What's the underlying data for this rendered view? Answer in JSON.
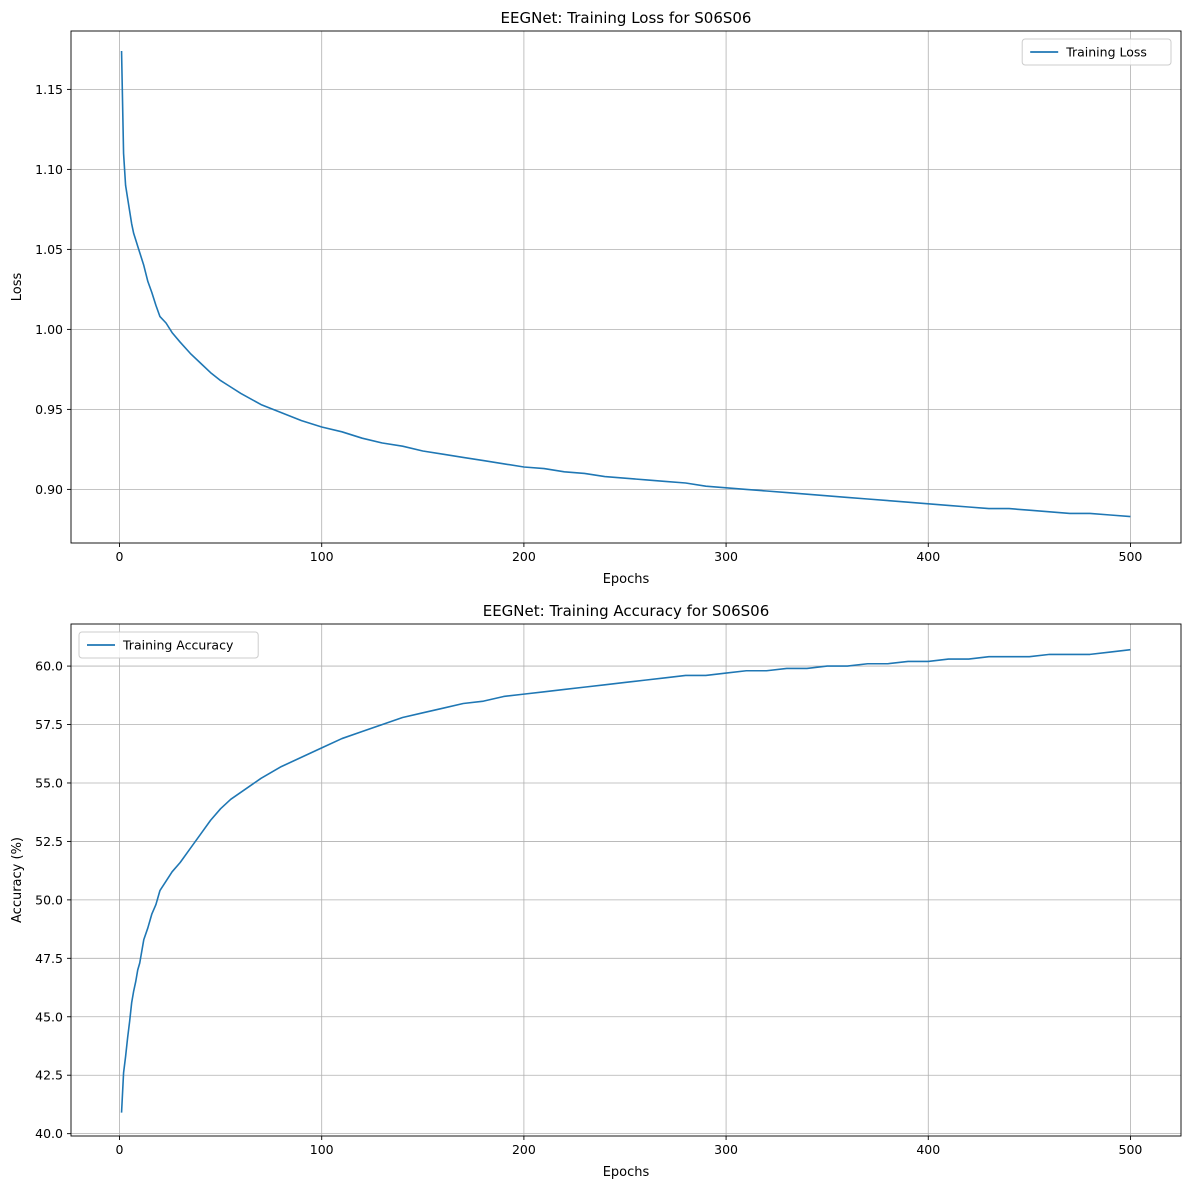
{
  "chart_data": [
    {
      "type": "line",
      "title": "EEGNet: Training Loss for S06S06",
      "xlabel": "Epochs",
      "ylabel": "Loss",
      "xlim": [
        -24,
        525
      ],
      "ylim": [
        0.8665,
        1.1865
      ],
      "xticks": [
        0,
        100,
        200,
        300,
        400,
        500
      ],
      "yticks": [
        0.9,
        0.95,
        1.0,
        1.05,
        1.1,
        1.15
      ],
      "ytick_format": 2,
      "grid": true,
      "legend": "top-right",
      "series": [
        {
          "name": "Training Loss",
          "color": "#1f77b4",
          "x": [
            1,
            2,
            3,
            4,
            5,
            6,
            7,
            8,
            9,
            10,
            12,
            14,
            16,
            18,
            20,
            23,
            26,
            30,
            35,
            40,
            45,
            50,
            55,
            60,
            70,
            80,
            90,
            100,
            110,
            120,
            130,
            140,
            150,
            160,
            170,
            180,
            190,
            200,
            210,
            220,
            230,
            240,
            250,
            260,
            270,
            280,
            290,
            300,
            310,
            320,
            330,
            340,
            350,
            360,
            370,
            380,
            390,
            400,
            410,
            420,
            430,
            440,
            450,
            460,
            470,
            480,
            490,
            500
          ],
          "values": [
            1.174,
            1.11,
            1.09,
            1.082,
            1.074,
            1.066,
            1.06,
            1.056,
            1.052,
            1.048,
            1.04,
            1.03,
            1.023,
            1.015,
            1.008,
            1.004,
            0.998,
            0.992,
            0.985,
            0.979,
            0.973,
            0.968,
            0.964,
            0.96,
            0.953,
            0.948,
            0.943,
            0.939,
            0.936,
            0.932,
            0.929,
            0.927,
            0.924,
            0.922,
            0.92,
            0.918,
            0.916,
            0.914,
            0.913,
            0.911,
            0.91,
            0.908,
            0.907,
            0.906,
            0.905,
            0.904,
            0.902,
            0.901,
            0.9,
            0.899,
            0.898,
            0.897,
            0.896,
            0.895,
            0.894,
            0.893,
            0.892,
            0.891,
            0.89,
            0.889,
            0.888,
            0.888,
            0.887,
            0.886,
            0.885,
            0.885,
            0.884,
            0.883
          ]
        }
      ]
    },
    {
      "type": "line",
      "title": "EEGNet: Training Accuracy for S06S06",
      "xlabel": "Epochs",
      "ylabel": "Accuracy (%)",
      "xlim": [
        -24,
        525
      ],
      "ylim": [
        39.9,
        61.8
      ],
      "xticks": [
        0,
        100,
        200,
        300,
        400,
        500
      ],
      "yticks": [
        40.0,
        42.5,
        45.0,
        47.5,
        50.0,
        52.5,
        55.0,
        57.5,
        60.0
      ],
      "ytick_format": 1,
      "grid": true,
      "legend": "top-left",
      "series": [
        {
          "name": "Training Accuracy",
          "color": "#1f77b4",
          "x": [
            1,
            2,
            3,
            4,
            5,
            6,
            7,
            8,
            9,
            10,
            12,
            14,
            16,
            18,
            20,
            23,
            26,
            30,
            35,
            40,
            45,
            50,
            55,
            60,
            70,
            80,
            90,
            100,
            110,
            120,
            130,
            140,
            150,
            160,
            170,
            180,
            190,
            200,
            210,
            220,
            230,
            240,
            250,
            260,
            270,
            280,
            290,
            300,
            310,
            320,
            330,
            340,
            350,
            360,
            370,
            380,
            390,
            400,
            410,
            420,
            430,
            440,
            450,
            460,
            470,
            480,
            490,
            500
          ],
          "values": [
            40.9,
            42.6,
            43.3,
            44.1,
            44.8,
            45.6,
            46.1,
            46.5,
            47.0,
            47.3,
            48.3,
            48.8,
            49.4,
            49.8,
            50.4,
            50.8,
            51.2,
            51.6,
            52.2,
            52.8,
            53.4,
            53.9,
            54.3,
            54.6,
            55.2,
            55.7,
            56.1,
            56.5,
            56.9,
            57.2,
            57.5,
            57.8,
            58.0,
            58.2,
            58.4,
            58.5,
            58.7,
            58.8,
            58.9,
            59.0,
            59.1,
            59.2,
            59.3,
            59.4,
            59.5,
            59.6,
            59.6,
            59.7,
            59.8,
            59.8,
            59.9,
            59.9,
            60.0,
            60.0,
            60.1,
            60.1,
            60.2,
            60.2,
            60.3,
            60.3,
            60.4,
            60.4,
            60.4,
            60.5,
            60.5,
            60.5,
            60.6,
            60.7
          ]
        }
      ]
    }
  ]
}
